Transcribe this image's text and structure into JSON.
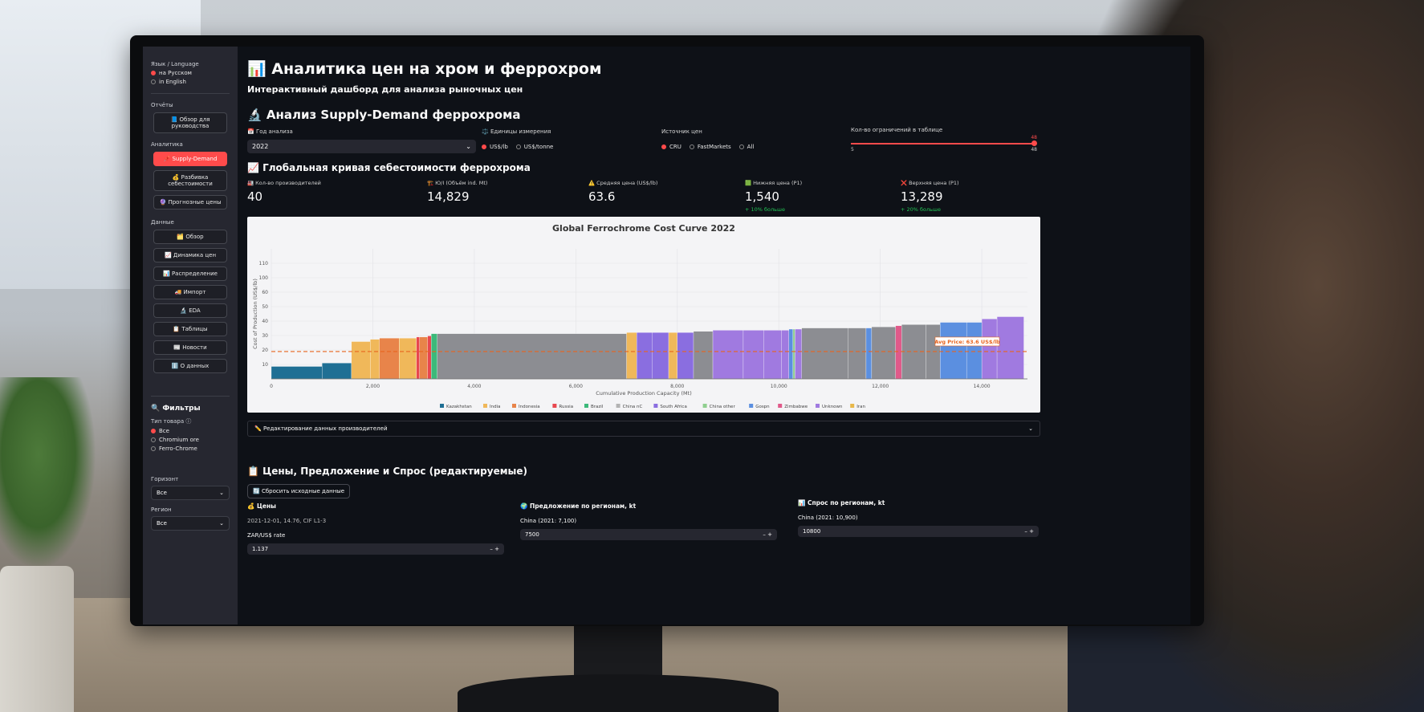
{
  "sidebar": {
    "language_label": "Язык / Language",
    "languages": [
      "на Русском",
      "in English"
    ],
    "reports_label": "Отчёты",
    "report_button": "📘 Обзор для руководства",
    "analytics_label": "Аналитика",
    "analytics_buttons": [
      "📌 Supply-Demand",
      "💰 Разбивка себестоимости",
      "🔮 Прогнозные цены"
    ],
    "data_label": "Данные",
    "data_buttons": [
      "🗂️ Обзор",
      "📈 Динамика цен",
      "📊 Распределение",
      "🚚 Импорт",
      "🔬 EDA",
      "📋 Таблицы",
      "📰 Новости",
      "ℹ️ О данных"
    ],
    "filters_title": "🔍 Фильтры",
    "product_type_label": "Тип товара ⓘ",
    "product_types": [
      "Все",
      "Chromium ore",
      "Ferro-Chrome"
    ],
    "horizon_label": "Горизонт",
    "horizon_value": "Все",
    "region_label": "Регион",
    "region_value": "Все"
  },
  "header": {
    "title": "📊 Аналитика цен на хром и феррохром",
    "subtitle": "Интерактивный дашборд для анализа рыночных цен"
  },
  "analysis": {
    "heading": "🔬 Анализ Supply-Demand феррохрома",
    "year_label": "📅 Год анализа",
    "year_value": "2022",
    "units_label": "⚖️ Единицы измерения",
    "units": [
      "US$/lb",
      "US$/tonne"
    ],
    "source_label": "Источник цен",
    "sources": [
      "CRU",
      "FastMarkets",
      "All"
    ],
    "limit_label": "Кол-во ограничений в таблице",
    "slider_min": "5",
    "slider_max": "48",
    "slider_value": "48"
  },
  "cost_curve": {
    "heading": "📈 Глобальная кривая себестоимости феррохрома",
    "metrics": [
      {
        "label": "🏭 Кол-во производителей",
        "value": "40",
        "delta": ""
      },
      {
        "label": "🏗️ Ю/I (Объём ind. Mt)",
        "value": "14,829",
        "delta": ""
      },
      {
        "label": "⚠️ Средняя цена (US$/lb)",
        "value": "63.6",
        "delta": ""
      },
      {
        "label": "🟩 Нижняя цена (P1)",
        "value": "1,540",
        "delta": "+ 10% больше"
      },
      {
        "label": "❌ Верхняя цена (P1)",
        "value": "13,289",
        "delta": "+ 20% больше"
      }
    ]
  },
  "chart_data": {
    "type": "bar",
    "title": "Global Ferrochrome Cost Curve 2022",
    "xlabel": "Cumulative Production Capacity (Mt)",
    "ylabel": "Cost of Production (US$/lb)",
    "xlim": [
      0,
      14900
    ],
    "ylim": [
      0,
      115
    ],
    "x_ticks": [
      "0",
      "2,000",
      "4,000",
      "6,000",
      "8,000",
      "10,000",
      "12,000",
      "14,000"
    ],
    "y_ticks": [
      "10",
      "20",
      "30",
      "40",
      "50",
      "60",
      "100",
      "110"
    ],
    "avg_price": 63.6,
    "avg_price_label": "Avg Price: 63.6 US$/lb",
    "legend": [
      {
        "name": "Kazakhstan",
        "color": "#1f6f94"
      },
      {
        "name": "India",
        "color": "#f0b85a"
      },
      {
        "name": "Indonesia",
        "color": "#e8844a"
      },
      {
        "name": "Russia",
        "color": "#e8474f"
      },
      {
        "name": "Brazil",
        "color": "#3cb97a"
      },
      {
        "name": "China nC",
        "color": "#b3b3b3"
      },
      {
        "name": "South Africa",
        "color": "#8a6ee0"
      },
      {
        "name": "China other",
        "color": "#8fcf8f"
      },
      {
        "name": "Gospn",
        "color": "#5b8fe0"
      },
      {
        "name": "Zimbabwe",
        "color": "#e05a8a"
      },
      {
        "name": "Unknown",
        "color": "#a07ae0"
      },
      {
        "name": "Iran",
        "color": "#e8b84a"
      }
    ],
    "bars": [
      {
        "x0": 0,
        "x1": 1000,
        "y": 11,
        "color": "#1f6f94"
      },
      {
        "x0": 1000,
        "x1": 1580,
        "y": 14,
        "color": "#1f6f94"
      },
      {
        "x0": 1580,
        "x1": 1950,
        "y": 33,
        "color": "#f0b85a"
      },
      {
        "x0": 1950,
        "x1": 2130,
        "y": 35,
        "color": "#f0b85a"
      },
      {
        "x0": 2130,
        "x1": 2520,
        "y": 36,
        "color": "#e8844a"
      },
      {
        "x0": 2520,
        "x1": 2860,
        "y": 36,
        "color": "#f0b85a"
      },
      {
        "x0": 2860,
        "x1": 2920,
        "y": 37,
        "color": "#e8474f"
      },
      {
        "x0": 2920,
        "x1": 3080,
        "y": 37,
        "color": "#e8844a"
      },
      {
        "x0": 3080,
        "x1": 3150,
        "y": 38,
        "color": "#e8474f"
      },
      {
        "x0": 3150,
        "x1": 3270,
        "y": 40,
        "color": "#3cb97a"
      },
      {
        "x0": 3270,
        "x1": 7000,
        "y": 40,
        "color": "#8c8d92"
      },
      {
        "x0": 7000,
        "x1": 7200,
        "y": 41,
        "color": "#f0b85a"
      },
      {
        "x0": 7200,
        "x1": 7500,
        "y": 41,
        "color": "#8a6ee0"
      },
      {
        "x0": 7500,
        "x1": 7830,
        "y": 41,
        "color": "#8a6ee0"
      },
      {
        "x0": 7830,
        "x1": 8000,
        "y": 41,
        "color": "#f0b85a"
      },
      {
        "x0": 8000,
        "x1": 8320,
        "y": 41,
        "color": "#8a6ee0"
      },
      {
        "x0": 8320,
        "x1": 8700,
        "y": 42,
        "color": "#8c8d92"
      },
      {
        "x0": 8700,
        "x1": 9300,
        "y": 43,
        "color": "#a07ae0"
      },
      {
        "x0": 9300,
        "x1": 9700,
        "y": 43,
        "color": "#a07ae0"
      },
      {
        "x0": 9700,
        "x1": 10050,
        "y": 43,
        "color": "#a07ae0"
      },
      {
        "x0": 10050,
        "x1": 10200,
        "y": 43,
        "color": "#a07ae0"
      },
      {
        "x0": 10200,
        "x1": 10280,
        "y": 44,
        "color": "#5b8fe0"
      },
      {
        "x0": 10280,
        "x1": 10320,
        "y": 44,
        "color": "#8fcf8f"
      },
      {
        "x0": 10320,
        "x1": 10450,
        "y": 44,
        "color": "#a07ae0"
      },
      {
        "x0": 10450,
        "x1": 11360,
        "y": 45,
        "color": "#8c8d92"
      },
      {
        "x0": 11360,
        "x1": 11720,
        "y": 45,
        "color": "#8c8d92"
      },
      {
        "x0": 11720,
        "x1": 11830,
        "y": 45,
        "color": "#5b8fe0"
      },
      {
        "x0": 11830,
        "x1": 12300,
        "y": 46,
        "color": "#8c8d92"
      },
      {
        "x0": 12300,
        "x1": 12420,
        "y": 47,
        "color": "#e05a8a"
      },
      {
        "x0": 12420,
        "x1": 12900,
        "y": 48,
        "color": "#8c8d92"
      },
      {
        "x0": 12900,
        "x1": 13180,
        "y": 48,
        "color": "#8c8d92"
      },
      {
        "x0": 13180,
        "x1": 13700,
        "y": 50,
        "color": "#5b8fe0"
      },
      {
        "x0": 13700,
        "x1": 14000,
        "y": 50,
        "color": "#5b8fe0"
      },
      {
        "x0": 14000,
        "x1": 14300,
        "y": 53,
        "color": "#a07ae0"
      },
      {
        "x0": 14300,
        "x1": 14829,
        "y": 55,
        "color": "#a07ae0"
      }
    ]
  },
  "editor": {
    "expander_label": "✏️ Редактирование данных производителей"
  },
  "prices_section": {
    "heading": "📋 Цены, Предложение и Спрос (редактируемые)",
    "reset_label": "🔄 Сбросить исходные данные",
    "prices_title": "💰 Цены",
    "prices_note": "2021-12-01, 14.76, CIF L1-3",
    "zar_label": "ZAR/US$ rate",
    "zar_value": "1.137",
    "supply_title": "🌍 Предложение по регионам, kt",
    "supply_label": "China (2021: 7,100)",
    "supply_value": "7500",
    "demand_title": "📊 Спрос по регионам, kt",
    "demand_label": "China (2021: 10,900)",
    "demand_value": "10800"
  },
  "colors": {
    "accent": "#ff4b4b",
    "background": "#0e1117",
    "sidebar": "#262730",
    "positive": "#21c354"
  }
}
